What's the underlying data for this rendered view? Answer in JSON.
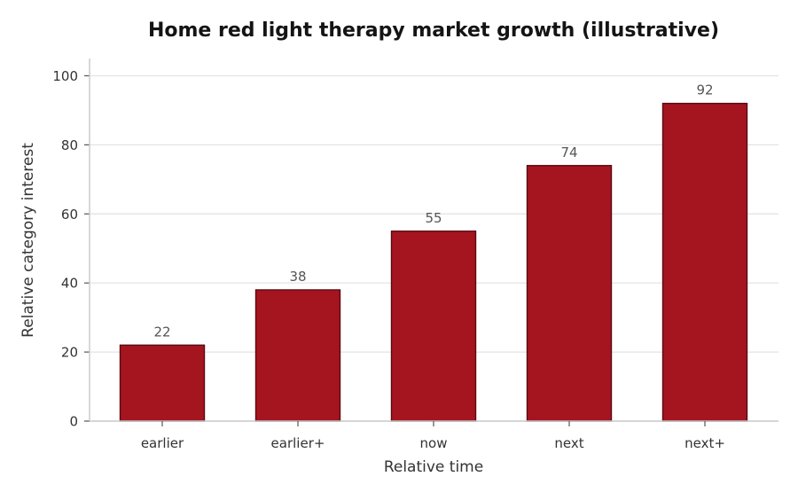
{
  "chart_data": {
    "type": "bar",
    "title": "Home red light therapy market growth (illustrative)",
    "xlabel": "Relative time",
    "ylabel": "Relative category interest",
    "categories": [
      "earlier",
      "earlier+",
      "now",
      "next",
      "next+"
    ],
    "values": [
      22,
      38,
      55,
      74,
      92
    ],
    "ylim": [
      0,
      105
    ],
    "yticks": [
      0,
      20,
      40,
      60,
      80,
      100
    ],
    "grid": "y",
    "bar_color": "#a5151f",
    "bar_edge_color": "#5a0a12"
  }
}
